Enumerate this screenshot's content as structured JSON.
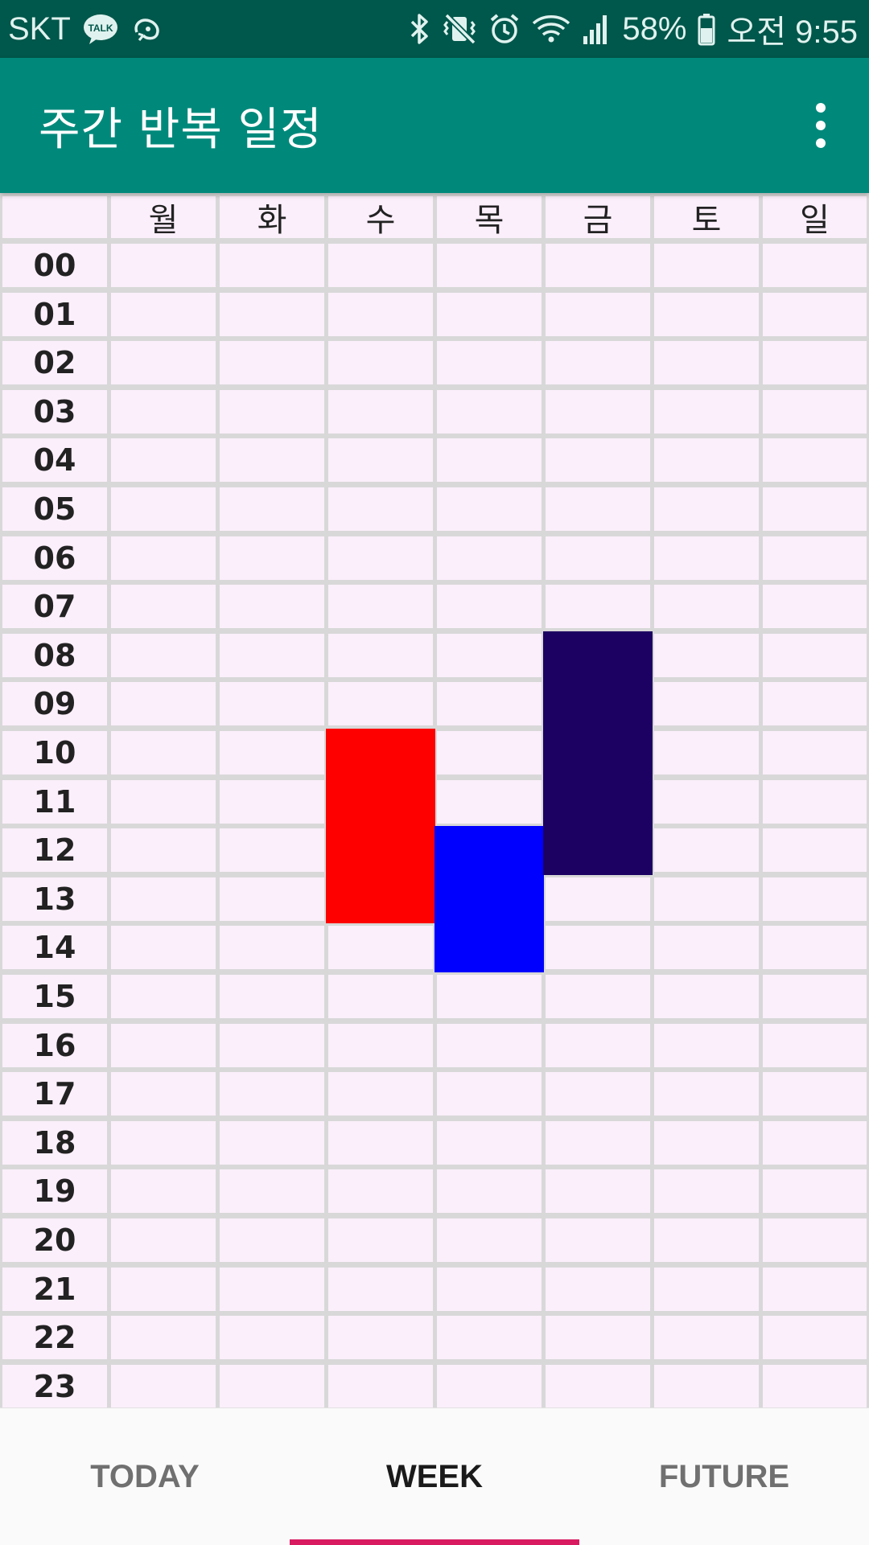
{
  "status_bar": {
    "carrier": "SKT",
    "talk_badge": "TALK",
    "battery_percent": "58%",
    "time": "오전 9:55"
  },
  "app_bar": {
    "title": "주간 반복 일정"
  },
  "timetable": {
    "days": [
      "월",
      "화",
      "수",
      "목",
      "금",
      "토",
      "일"
    ],
    "hours": [
      "00",
      "01",
      "02",
      "03",
      "04",
      "05",
      "06",
      "07",
      "08",
      "09",
      "10",
      "11",
      "12",
      "13",
      "14",
      "15",
      "16",
      "17",
      "18",
      "19",
      "20",
      "21",
      "22",
      "23"
    ],
    "events": [
      {
        "day_index": 2,
        "start_hour": 10,
        "end_hour": 14,
        "color": "#FF0000"
      },
      {
        "day_index": 3,
        "start_hour": 12,
        "end_hour": 15,
        "color": "#0000FF"
      },
      {
        "day_index": 4,
        "start_hour": 8,
        "end_hour": 13,
        "color": "#1C0062"
      }
    ]
  },
  "tabs": [
    {
      "label": "TODAY",
      "active": false
    },
    {
      "label": "WEEK",
      "active": true
    },
    {
      "label": "FUTURE",
      "active": false
    }
  ],
  "colors": {
    "status_bar": "#00574B",
    "app_bar": "#00897B",
    "cell_background": "#FBEFFB",
    "grid_lines": "#D8D8D8",
    "tab_indicator": "#D81B60"
  }
}
